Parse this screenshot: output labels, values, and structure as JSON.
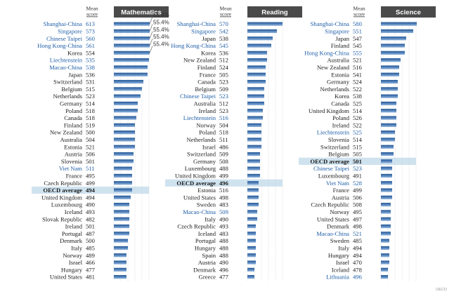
{
  "chart_data": [
    {
      "type": "bar",
      "title": "Mathematics",
      "score_header": "Mean score",
      "callout": "55.4%",
      "rows": [
        {
          "country": "Shanghai-China",
          "score": 613,
          "value": 55.4,
          "partner": true,
          "oecd_avg": false
        },
        {
          "country": "Singapore",
          "score": 573,
          "value": 40,
          "partner": true,
          "oecd_avg": false
        },
        {
          "country": "Chinese Taipei",
          "score": 560,
          "value": 37,
          "partner": true,
          "oecd_avg": false
        },
        {
          "country": "Hong Kong-China",
          "score": 561,
          "value": 34,
          "partner": true,
          "oecd_avg": false
        },
        {
          "country": "Korea",
          "score": 554,
          "value": 31,
          "partner": false,
          "oecd_avg": false
        },
        {
          "country": "Liechtenstein",
          "score": 535,
          "value": 25,
          "partner": true,
          "oecd_avg": false
        },
        {
          "country": "Macao-China",
          "score": 538,
          "value": 24,
          "partner": true,
          "oecd_avg": false
        },
        {
          "country": "Japan",
          "score": 536,
          "value": 24,
          "partner": false,
          "oecd_avg": false
        },
        {
          "country": "Switzerland",
          "score": 531,
          "value": 21,
          "partner": false,
          "oecd_avg": false
        },
        {
          "country": "Belgium",
          "score": 515,
          "value": 20,
          "partner": false,
          "oecd_avg": false
        },
        {
          "country": "Netherlands",
          "score": 523,
          "value": 19,
          "partner": false,
          "oecd_avg": false
        },
        {
          "country": "Germany",
          "score": 514,
          "value": 17,
          "partner": false,
          "oecd_avg": false
        },
        {
          "country": "Poland",
          "score": 518,
          "value": 17,
          "partner": false,
          "oecd_avg": false
        },
        {
          "country": "Canada",
          "score": 518,
          "value": 16,
          "partner": false,
          "oecd_avg": false
        },
        {
          "country": "Finland",
          "score": 519,
          "value": 15,
          "partner": false,
          "oecd_avg": false
        },
        {
          "country": "New Zealand",
          "score": 500,
          "value": 15,
          "partner": false,
          "oecd_avg": false
        },
        {
          "country": "Australia",
          "score": 504,
          "value": 15,
          "partner": false,
          "oecd_avg": false
        },
        {
          "country": "Estonia",
          "score": 521,
          "value": 15,
          "partner": false,
          "oecd_avg": false
        },
        {
          "country": "Austria",
          "score": 506,
          "value": 14,
          "partner": false,
          "oecd_avg": false
        },
        {
          "country": "Slovenia",
          "score": 501,
          "value": 14,
          "partner": false,
          "oecd_avg": false
        },
        {
          "country": "Viet Nam",
          "score": 511,
          "value": 13,
          "partner": true,
          "oecd_avg": false
        },
        {
          "country": "France",
          "score": 495,
          "value": 13,
          "partner": false,
          "oecd_avg": false
        },
        {
          "country": "Czech Republic",
          "score": 499,
          "value": 13,
          "partner": false,
          "oecd_avg": false
        },
        {
          "country": "OECD average",
          "score": 494,
          "value": 13,
          "partner": false,
          "oecd_avg": true
        },
        {
          "country": "United Kingdom",
          "score": 494,
          "value": 12,
          "partner": false,
          "oecd_avg": false
        },
        {
          "country": "Luxembourg",
          "score": 490,
          "value": 11,
          "partner": false,
          "oecd_avg": false
        },
        {
          "country": "Iceland",
          "score": 493,
          "value": 11,
          "partner": false,
          "oecd_avg": false
        },
        {
          "country": "Slovak Republic",
          "score": 482,
          "value": 11,
          "partner": false,
          "oecd_avg": false
        },
        {
          "country": "Ireland",
          "score": 501,
          "value": 11,
          "partner": false,
          "oecd_avg": false
        },
        {
          "country": "Portugal",
          "score": 487,
          "value": 11,
          "partner": false,
          "oecd_avg": false
        },
        {
          "country": "Denmark",
          "score": 500,
          "value": 10,
          "partner": false,
          "oecd_avg": false
        },
        {
          "country": "Italy",
          "score": 485,
          "value": 10,
          "partner": false,
          "oecd_avg": false
        },
        {
          "country": "Norway",
          "score": 489,
          "value": 9,
          "partner": false,
          "oecd_avg": false
        },
        {
          "country": "Israel",
          "score": 466,
          "value": 9,
          "partner": false,
          "oecd_avg": false
        },
        {
          "country": "Hungary",
          "score": 477,
          "value": 9,
          "partner": false,
          "oecd_avg": false
        },
        {
          "country": "United States",
          "score": 481,
          "value": 9,
          "partner": false,
          "oecd_avg": false
        }
      ]
    },
    {
      "type": "bar",
      "title": "Reading",
      "score_header": "Mean score",
      "rows": [
        {
          "country": "Shanghai-China",
          "score": 570,
          "value": 25,
          "partner": true,
          "oecd_avg": false
        },
        {
          "country": "Singapore",
          "score": 542,
          "value": 21,
          "partner": true,
          "oecd_avg": false
        },
        {
          "country": "Japan",
          "score": 538,
          "value": 18,
          "partner": false,
          "oecd_avg": false
        },
        {
          "country": "Hong Kong-China",
          "score": 545,
          "value": 17,
          "partner": true,
          "oecd_avg": false
        },
        {
          "country": "Korea",
          "score": 536,
          "value": 14,
          "partner": false,
          "oecd_avg": false
        },
        {
          "country": "New Zealand",
          "score": 512,
          "value": 14,
          "partner": false,
          "oecd_avg": false
        },
        {
          "country": "Finland",
          "score": 524,
          "value": 13,
          "partner": false,
          "oecd_avg": false
        },
        {
          "country": "France",
          "score": 505,
          "value": 13,
          "partner": false,
          "oecd_avg": false
        },
        {
          "country": "Canada",
          "score": 523,
          "value": 13,
          "partner": false,
          "oecd_avg": false
        },
        {
          "country": "Belgium",
          "score": 509,
          "value": 12,
          "partner": false,
          "oecd_avg": false
        },
        {
          "country": "Chinese Taipei",
          "score": 523,
          "value": 12,
          "partner": true,
          "oecd_avg": false
        },
        {
          "country": "Australia",
          "score": 512,
          "value": 12,
          "partner": false,
          "oecd_avg": false
        },
        {
          "country": "Ireland",
          "score": 523,
          "value": 11,
          "partner": false,
          "oecd_avg": false
        },
        {
          "country": "Liechtenstein",
          "score": 516,
          "value": 11,
          "partner": true,
          "oecd_avg": false
        },
        {
          "country": "Norway",
          "score": 504,
          "value": 10,
          "partner": false,
          "oecd_avg": false
        },
        {
          "country": "Poland",
          "score": 518,
          "value": 10,
          "partner": false,
          "oecd_avg": false
        },
        {
          "country": "Netherlands",
          "score": 511,
          "value": 10,
          "partner": false,
          "oecd_avg": false
        },
        {
          "country": "Israel",
          "score": 486,
          "value": 10,
          "partner": false,
          "oecd_avg": false
        },
        {
          "country": "Switzerland",
          "score": 509,
          "value": 9,
          "partner": false,
          "oecd_avg": false
        },
        {
          "country": "Germany",
          "score": 508,
          "value": 9,
          "partner": false,
          "oecd_avg": false
        },
        {
          "country": "Luxembourg",
          "score": 488,
          "value": 9,
          "partner": false,
          "oecd_avg": false
        },
        {
          "country": "United Kingdom",
          "score": 499,
          "value": 9,
          "partner": false,
          "oecd_avg": false
        },
        {
          "country": "OECD average",
          "score": 496,
          "value": 8,
          "partner": false,
          "oecd_avg": true
        },
        {
          "country": "Estonia",
          "score": 516,
          "value": 8,
          "partner": false,
          "oecd_avg": false
        },
        {
          "country": "United States",
          "score": 498,
          "value": 8,
          "partner": false,
          "oecd_avg": false
        },
        {
          "country": "Sweden",
          "score": 483,
          "value": 8,
          "partner": false,
          "oecd_avg": false
        },
        {
          "country": "Macao-China",
          "score": 509,
          "value": 7,
          "partner": true,
          "oecd_avg": false
        },
        {
          "country": "Italy",
          "score": 490,
          "value": 7,
          "partner": false,
          "oecd_avg": false
        },
        {
          "country": "Czech Republic",
          "score": 493,
          "value": 6,
          "partner": false,
          "oecd_avg": false
        },
        {
          "country": "Iceland",
          "score": 483,
          "value": 6,
          "partner": false,
          "oecd_avg": false
        },
        {
          "country": "Portugal",
          "score": 488,
          "value": 6,
          "partner": false,
          "oecd_avg": false
        },
        {
          "country": "Hungary",
          "score": 488,
          "value": 6,
          "partner": false,
          "oecd_avg": false
        },
        {
          "country": "Spain",
          "score": 488,
          "value": 6,
          "partner": false,
          "oecd_avg": false
        },
        {
          "country": "Austria",
          "score": 490,
          "value": 6,
          "partner": false,
          "oecd_avg": false
        },
        {
          "country": "Denmark",
          "score": 496,
          "value": 5,
          "partner": false,
          "oecd_avg": false
        },
        {
          "country": "Greece",
          "score": 477,
          "value": 5,
          "partner": false,
          "oecd_avg": false
        }
      ]
    },
    {
      "type": "bar",
      "title": "Science",
      "score_header": "Mean score",
      "rows": [
        {
          "country": "Shanghai-China",
          "score": 580,
          "value": 27,
          "partner": true,
          "oecd_avg": false
        },
        {
          "country": "Singapore",
          "score": 551,
          "value": 23,
          "partner": true,
          "oecd_avg": false
        },
        {
          "country": "Japan",
          "score": 547,
          "value": 18,
          "partner": false,
          "oecd_avg": false
        },
        {
          "country": "Finland",
          "score": 545,
          "value": 17,
          "partner": false,
          "oecd_avg": false
        },
        {
          "country": "Hong Kong-China",
          "score": 555,
          "value": 17,
          "partner": true,
          "oecd_avg": false
        },
        {
          "country": "Australia",
          "score": 521,
          "value": 14,
          "partner": false,
          "oecd_avg": false
        },
        {
          "country": "New Zealand",
          "score": 516,
          "value": 13,
          "partner": false,
          "oecd_avg": false
        },
        {
          "country": "Estonia",
          "score": 541,
          "value": 13,
          "partner": false,
          "oecd_avg": false
        },
        {
          "country": "Germany",
          "score": 524,
          "value": 12,
          "partner": false,
          "oecd_avg": false
        },
        {
          "country": "Netherlands",
          "score": 522,
          "value": 12,
          "partner": false,
          "oecd_avg": false
        },
        {
          "country": "Korea",
          "score": 538,
          "value": 12,
          "partner": false,
          "oecd_avg": false
        },
        {
          "country": "Canada",
          "score": 525,
          "value": 11,
          "partner": false,
          "oecd_avg": false
        },
        {
          "country": "United Kingdom",
          "score": 514,
          "value": 11,
          "partner": false,
          "oecd_avg": false
        },
        {
          "country": "Poland",
          "score": 526,
          "value": 11,
          "partner": false,
          "oecd_avg": false
        },
        {
          "country": "Ireland",
          "score": 522,
          "value": 11,
          "partner": false,
          "oecd_avg": false
        },
        {
          "country": "Liechtenstein",
          "score": 525,
          "value": 10,
          "partner": true,
          "oecd_avg": false
        },
        {
          "country": "Slovenia",
          "score": 514,
          "value": 10,
          "partner": false,
          "oecd_avg": false
        },
        {
          "country": "Switzerland",
          "score": 515,
          "value": 9,
          "partner": false,
          "oecd_avg": false
        },
        {
          "country": "Belgium",
          "score": 505,
          "value": 9,
          "partner": false,
          "oecd_avg": false
        },
        {
          "country": "OECD average",
          "score": 501,
          "value": 8,
          "partner": false,
          "oecd_avg": true
        },
        {
          "country": "Chinese Taipei",
          "score": 523,
          "value": 8,
          "partner": true,
          "oecd_avg": false
        },
        {
          "country": "Luxembourg",
          "score": 491,
          "value": 8,
          "partner": false,
          "oecd_avg": false
        },
        {
          "country": "Viet Nam",
          "score": 528,
          "value": 8,
          "partner": true,
          "oecd_avg": false
        },
        {
          "country": "France",
          "score": 499,
          "value": 8,
          "partner": false,
          "oecd_avg": false
        },
        {
          "country": "Austria",
          "score": 506,
          "value": 8,
          "partner": false,
          "oecd_avg": false
        },
        {
          "country": "Czech Republic",
          "score": 508,
          "value": 7,
          "partner": false,
          "oecd_avg": false
        },
        {
          "country": "Norway",
          "score": 495,
          "value": 7,
          "partner": false,
          "oecd_avg": false
        },
        {
          "country": "United States",
          "score": 497,
          "value": 7,
          "partner": false,
          "oecd_avg": false
        },
        {
          "country": "Denmark",
          "score": 498,
          "value": 7,
          "partner": false,
          "oecd_avg": false
        },
        {
          "country": "Macao-China",
          "score": 521,
          "value": 7,
          "partner": true,
          "oecd_avg": false
        },
        {
          "country": "Sweden",
          "score": 485,
          "value": 6,
          "partner": false,
          "oecd_avg": false
        },
        {
          "country": "Italy",
          "score": 494,
          "value": 6,
          "partner": false,
          "oecd_avg": false
        },
        {
          "country": "Hungary",
          "score": 494,
          "value": 6,
          "partner": false,
          "oecd_avg": false
        },
        {
          "country": "Israel",
          "score": 470,
          "value": 6,
          "partner": false,
          "oecd_avg": false
        },
        {
          "country": "Iceland",
          "score": 478,
          "value": 5,
          "partner": false,
          "oecd_avg": false
        },
        {
          "country": "Lithuania",
          "score": 496,
          "value": 5,
          "partner": true,
          "oecd_avg": false
        }
      ]
    }
  ],
  "colors": {
    "header_bg": "#4a4a4a",
    "bar_top": "#1f5597",
    "bar_bottom": "#8fb3dd",
    "partner_text": "#1f5fa8",
    "text": "#1a1a1a",
    "oecd_highlight": "#cfe3ef",
    "grid": "#c8c8c8"
  },
  "footer": "OECD"
}
